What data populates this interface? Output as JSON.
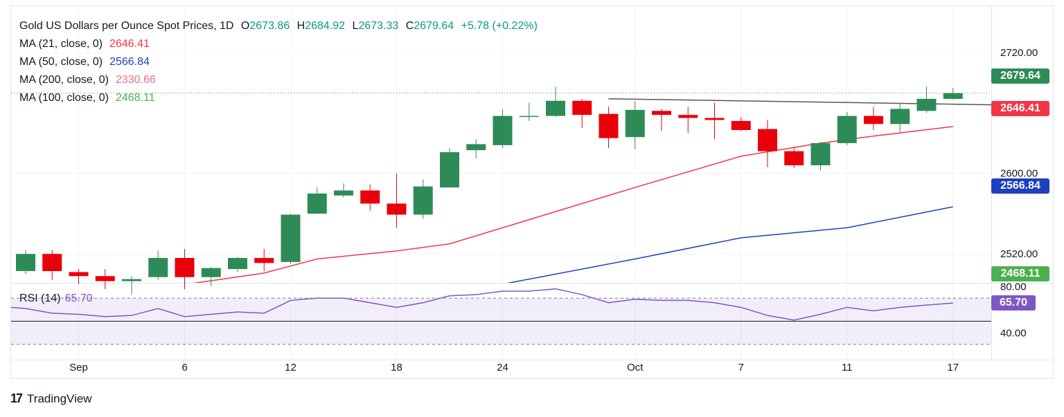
{
  "header": {
    "title": "Gold US Dollars per Ounce Spot Prices, 1D",
    "o_label": "O",
    "o_value": "2673.86",
    "h_label": "H",
    "h_value": "2684.92",
    "l_label": "L",
    "l_value": "2673.33",
    "c_label": "C",
    "c_value": "2679.64",
    "change": "+5.78 (+0.22%)"
  },
  "indicators": [
    {
      "label": "MA (21, close, 0)",
      "value": "2646.41",
      "color": "#f23645"
    },
    {
      "label": "MA (50, close, 0)",
      "value": "2566.84",
      "color": "#1e3fbf"
    },
    {
      "label": "MA (200, close, 0)",
      "value": "2330.66",
      "color": "#f06b8a"
    },
    {
      "label": "MA (100, close, 0)",
      "value": "2468.11",
      "color": "#4caf50"
    }
  ],
  "rsi": {
    "label": "RSI (14)",
    "value": "65.70",
    "color": "#7e57c2"
  },
  "badges": {
    "close": "2679.64",
    "ma21": "2646.41",
    "ma50": "2566.84",
    "ma100": "2468.11",
    "rsi": "65.70"
  },
  "footer": {
    "brand": "TradingView",
    "logo": "17"
  },
  "colors": {
    "up": "#2e8b57",
    "down": "#e8000b",
    "ma21": "#f23645",
    "ma50": "#1e3fbf",
    "ma100": "#4caf50",
    "rsi": "#7e57c2",
    "trendline": "#555555"
  },
  "chart_data": {
    "type": "candlestick",
    "title": "Gold US Dollars per Ounce Spot Prices, 1D",
    "y_ticks": [
      2720,
      2600,
      2520
    ],
    "ylim": [
      2492,
      2735
    ],
    "x_tick_labels": [
      {
        "date": "2024-09-02",
        "label": "Sep"
      },
      {
        "date": "2024-09-06",
        "label": "6"
      },
      {
        "date": "2024-09-12",
        "label": "12"
      },
      {
        "date": "2024-09-18",
        "label": "18"
      },
      {
        "date": "2024-09-24",
        "label": "24"
      },
      {
        "date": "2024-10-01",
        "label": "Oct"
      },
      {
        "date": "2024-10-07",
        "label": "7"
      },
      {
        "date": "2024-10-11",
        "label": "11"
      },
      {
        "date": "2024-10-17",
        "label": "17"
      }
    ],
    "candles": [
      {
        "date": "2024-08-29",
        "o": 2503,
        "h": 2524,
        "l": 2500,
        "c": 2520
      },
      {
        "date": "2024-08-30",
        "o": 2520,
        "h": 2524,
        "l": 2494,
        "c": 2503
      },
      {
        "date": "2024-09-02",
        "o": 2502,
        "h": 2505,
        "l": 2490,
        "c": 2498
      },
      {
        "date": "2024-09-03",
        "o": 2498,
        "h": 2505,
        "l": 2485,
        "c": 2493
      },
      {
        "date": "2024-09-04",
        "o": 2493,
        "h": 2498,
        "l": 2480,
        "c": 2495
      },
      {
        "date": "2024-09-05",
        "o": 2497,
        "h": 2523,
        "l": 2494,
        "c": 2516
      },
      {
        "date": "2024-09-06",
        "o": 2516,
        "h": 2525,
        "l": 2485,
        "c": 2497
      },
      {
        "date": "2024-09-09",
        "o": 2497,
        "h": 2507,
        "l": 2488,
        "c": 2506
      },
      {
        "date": "2024-09-10",
        "o": 2505,
        "h": 2517,
        "l": 2502,
        "c": 2516
      },
      {
        "date": "2024-09-11",
        "o": 2516,
        "h": 2525,
        "l": 2503,
        "c": 2511
      },
      {
        "date": "2024-09-12",
        "o": 2512,
        "h": 2560,
        "l": 2510,
        "c": 2559
      },
      {
        "date": "2024-09-13",
        "o": 2560,
        "h": 2586,
        "l": 2560,
        "c": 2580
      },
      {
        "date": "2024-09-16",
        "o": 2578,
        "h": 2590,
        "l": 2576,
        "c": 2583
      },
      {
        "date": "2024-09-17",
        "o": 2583,
        "h": 2589,
        "l": 2563,
        "c": 2570
      },
      {
        "date": "2024-09-18",
        "o": 2570,
        "h": 2600,
        "l": 2546,
        "c": 2559
      },
      {
        "date": "2024-09-19",
        "o": 2559,
        "h": 2594,
        "l": 2555,
        "c": 2587
      },
      {
        "date": "2024-09-20",
        "o": 2586,
        "h": 2625,
        "l": 2586,
        "c": 2621
      },
      {
        "date": "2024-09-23",
        "o": 2623,
        "h": 2634,
        "l": 2615,
        "c": 2629
      },
      {
        "date": "2024-09-24",
        "o": 2628,
        "h": 2664,
        "l": 2625,
        "c": 2657
      },
      {
        "date": "2024-09-25",
        "o": 2657,
        "h": 2670,
        "l": 2652,
        "c": 2657
      },
      {
        "date": "2024-09-26",
        "o": 2657,
        "h": 2686,
        "l": 2656,
        "c": 2672
      },
      {
        "date": "2024-09-27",
        "o": 2672,
        "h": 2674,
        "l": 2645,
        "c": 2658
      },
      {
        "date": "2024-09-30",
        "o": 2659,
        "h": 2666,
        "l": 2625,
        "c": 2635
      },
      {
        "date": "2024-10-01",
        "o": 2636,
        "h": 2672,
        "l": 2624,
        "c": 2663
      },
      {
        "date": "2024-10-02",
        "o": 2662,
        "h": 2664,
        "l": 2642,
        "c": 2658
      },
      {
        "date": "2024-10-03",
        "o": 2658,
        "h": 2666,
        "l": 2640,
        "c": 2655
      },
      {
        "date": "2024-10-04",
        "o": 2655,
        "h": 2670,
        "l": 2634,
        "c": 2653
      },
      {
        "date": "2024-10-07",
        "o": 2652,
        "h": 2656,
        "l": 2642,
        "c": 2643
      },
      {
        "date": "2024-10-08",
        "o": 2644,
        "h": 2653,
        "l": 2606,
        "c": 2622
      },
      {
        "date": "2024-10-09",
        "o": 2622,
        "h": 2626,
        "l": 2605,
        "c": 2608
      },
      {
        "date": "2024-10-10",
        "o": 2608,
        "h": 2631,
        "l": 2603,
        "c": 2630
      },
      {
        "date": "2024-10-11",
        "o": 2630,
        "h": 2661,
        "l": 2628,
        "c": 2657
      },
      {
        "date": "2024-10-14",
        "o": 2657,
        "h": 2666,
        "l": 2643,
        "c": 2649
      },
      {
        "date": "2024-10-15",
        "o": 2649,
        "h": 2669,
        "l": 2641,
        "c": 2664
      },
      {
        "date": "2024-10-16",
        "o": 2662,
        "h": 2686,
        "l": 2660,
        "c": 2674
      },
      {
        "date": "2024-10-17",
        "o": 2673.86,
        "h": 2684.92,
        "l": 2673.33,
        "c": 2679.64
      }
    ],
    "ma21": [
      {
        "date": "2024-08-29",
        "v": 2470
      },
      {
        "date": "2024-09-04",
        "v": 2482
      },
      {
        "date": "2024-09-11",
        "v": 2501
      },
      {
        "date": "2024-09-13",
        "v": 2515
      },
      {
        "date": "2024-09-18",
        "v": 2523
      },
      {
        "date": "2024-09-20",
        "v": 2530
      },
      {
        "date": "2024-09-26",
        "v": 2562
      },
      {
        "date": "2024-10-01",
        "v": 2586
      },
      {
        "date": "2024-10-07",
        "v": 2617
      },
      {
        "date": "2024-10-10",
        "v": 2630
      },
      {
        "date": "2024-10-14",
        "v": 2637
      },
      {
        "date": "2024-10-17",
        "v": 2646.41
      }
    ],
    "ma50": [
      {
        "date": "2024-09-18",
        "v": 2471
      },
      {
        "date": "2024-09-24",
        "v": 2490
      },
      {
        "date": "2024-10-01",
        "v": 2515
      },
      {
        "date": "2024-10-07",
        "v": 2536
      },
      {
        "date": "2024-10-11",
        "v": 2546
      },
      {
        "date": "2024-10-17",
        "v": 2566.84
      }
    ],
    "trendline": [
      {
        "date": "2024-09-30",
        "v": 2674
      },
      {
        "date": "2024-10-18",
        "v": 2668
      }
    ],
    "rsi": {
      "ylim": [
        30,
        82
      ],
      "ticks": [
        80,
        40
      ],
      "bands": [
        70,
        30
      ],
      "midline": 50,
      "points": [
        {
          "date": "2024-08-29",
          "v": 61
        },
        {
          "date": "2024-08-30",
          "v": 57
        },
        {
          "date": "2024-09-02",
          "v": 56
        },
        {
          "date": "2024-09-03",
          "v": 54
        },
        {
          "date": "2024-09-04",
          "v": 55
        },
        {
          "date": "2024-09-05",
          "v": 61
        },
        {
          "date": "2024-09-06",
          "v": 54
        },
        {
          "date": "2024-09-09",
          "v": 56
        },
        {
          "date": "2024-09-10",
          "v": 58
        },
        {
          "date": "2024-09-11",
          "v": 57
        },
        {
          "date": "2024-09-12",
          "v": 68
        },
        {
          "date": "2024-09-13",
          "v": 70
        },
        {
          "date": "2024-09-16",
          "v": 70
        },
        {
          "date": "2024-09-17",
          "v": 66
        },
        {
          "date": "2024-09-18",
          "v": 62
        },
        {
          "date": "2024-09-19",
          "v": 66
        },
        {
          "date": "2024-09-20",
          "v": 72
        },
        {
          "date": "2024-09-23",
          "v": 73
        },
        {
          "date": "2024-09-24",
          "v": 76
        },
        {
          "date": "2024-09-25",
          "v": 76
        },
        {
          "date": "2024-09-26",
          "v": 78
        },
        {
          "date": "2024-09-27",
          "v": 73
        },
        {
          "date": "2024-09-30",
          "v": 66
        },
        {
          "date": "2024-10-01",
          "v": 69
        },
        {
          "date": "2024-10-02",
          "v": 68
        },
        {
          "date": "2024-10-03",
          "v": 68
        },
        {
          "date": "2024-10-04",
          "v": 66
        },
        {
          "date": "2024-10-07",
          "v": 62
        },
        {
          "date": "2024-10-08",
          "v": 55
        },
        {
          "date": "2024-10-09",
          "v": 51
        },
        {
          "date": "2024-10-10",
          "v": 56
        },
        {
          "date": "2024-10-11",
          "v": 62
        },
        {
          "date": "2024-10-14",
          "v": 59
        },
        {
          "date": "2024-10-15",
          "v": 62
        },
        {
          "date": "2024-10-16",
          "v": 64
        },
        {
          "date": "2024-10-17",
          "v": 65.7
        }
      ]
    }
  }
}
